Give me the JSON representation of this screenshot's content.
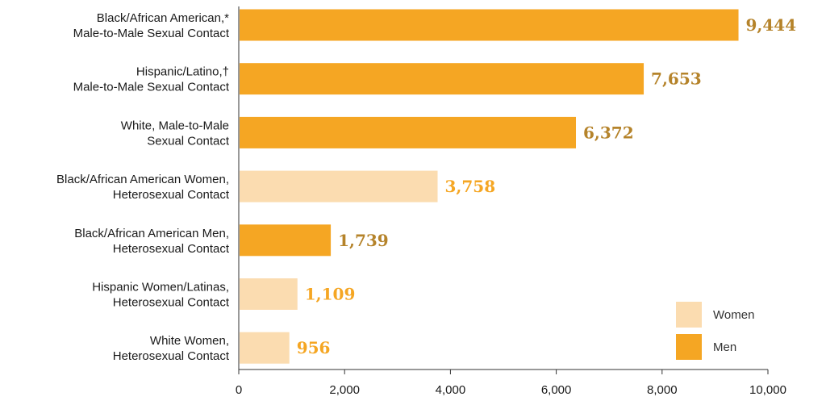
{
  "chart_data": {
    "type": "bar",
    "orientation": "horizontal",
    "title": "",
    "xlabel": "",
    "ylabel": "",
    "xlim": [
      0,
      10000
    ],
    "x_ticks": [
      0,
      2000,
      4000,
      6000,
      8000,
      10000
    ],
    "x_tick_labels": [
      "0",
      "2,000",
      "4,000",
      "6,000",
      "8,000",
      "10,000"
    ],
    "grid": false,
    "legend_position": "bottom-right",
    "categories": [
      [
        "Black/African American,*",
        "Male-to-Male Sexual Contact"
      ],
      [
        "Hispanic/Latino,†",
        "Male-to-Male Sexual Contact"
      ],
      [
        "White, Male-to-Male",
        "Sexual Contact"
      ],
      [
        "Black/African American Women,",
        "Heterosexual Contact"
      ],
      [
        "Black/African American Men,",
        "Heterosexual Contact"
      ],
      [
        "Hispanic Women/Latinas,",
        "Heterosexual Contact"
      ],
      [
        "White Women,",
        "Heterosexual Contact"
      ]
    ],
    "values": [
      9444,
      7653,
      6372,
      3758,
      1739,
      1109,
      956
    ],
    "value_labels": [
      "9,444",
      "7,653",
      "6,372",
      "3,758",
      "1,739",
      "1,109",
      "956"
    ],
    "groups": [
      "Men",
      "Men",
      "Men",
      "Women",
      "Men",
      "Women",
      "Women"
    ],
    "legend": [
      {
        "key": "Women",
        "label": "Women",
        "color": "#fbdcb0"
      },
      {
        "key": "Men",
        "label": "Men",
        "color": "#f5a623"
      }
    ],
    "colors": {
      "Men": "#f5a623",
      "Women": "#fbdcb0",
      "label_Men": "#b5832a",
      "label_Women": "#f5a623",
      "axis": "#333333"
    }
  }
}
